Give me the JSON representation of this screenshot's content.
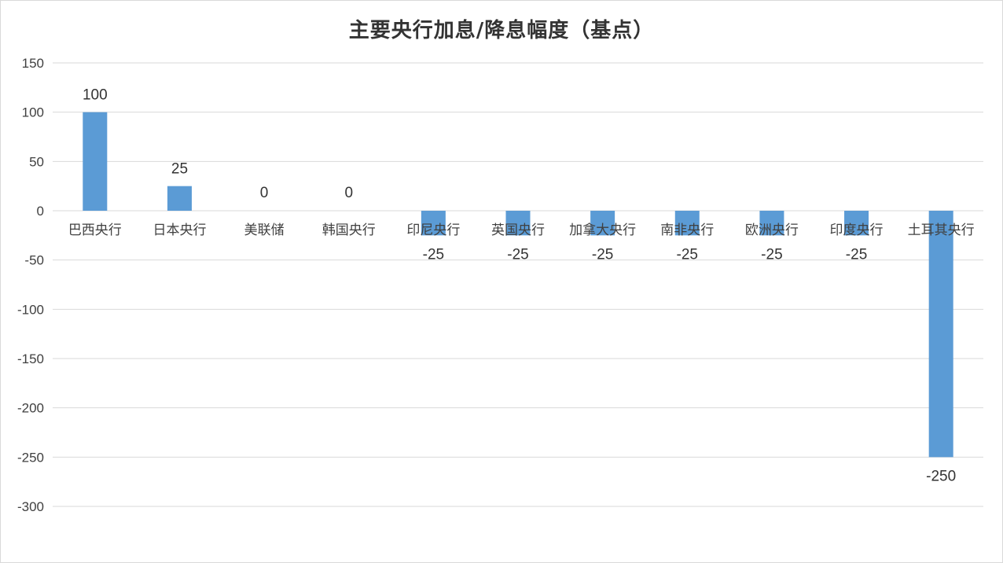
{
  "title": "主要央行加息/降息幅度（基点）",
  "colors": {
    "bar": "#5b9bd5",
    "grid": "#d9d9d9",
    "text": "#404040"
  },
  "chart_data": {
    "type": "bar",
    "title": "主要央行加息/降息幅度（基点）",
    "xlabel": "",
    "ylabel": "",
    "ylim": [
      -300,
      150
    ],
    "yticks": [
      150,
      100,
      50,
      0,
      -50,
      -100,
      -150,
      -200,
      -250,
      -300
    ],
    "grid": true,
    "legend": "none",
    "data_labels": true,
    "categories": [
      "巴西央行",
      "日本央行",
      "美联储",
      "韩国央行",
      "印尼央行",
      "英国央行",
      "加拿大央行",
      "南非央行",
      "欧洲央行",
      "印度央行",
      "土耳其央行"
    ],
    "values": [
      100,
      25,
      0,
      0,
      -25,
      -25,
      -25,
      -25,
      -25,
      -25,
      -250
    ]
  }
}
